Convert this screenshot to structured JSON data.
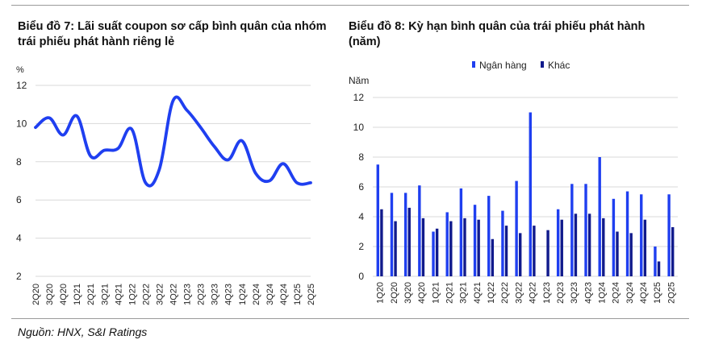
{
  "source": "Nguồn: HNX, S&I Ratings",
  "colors": {
    "bank": "#1f3ff0",
    "other": "#101a8c",
    "line": "#1f3ff0",
    "grid": "#d9d9d9"
  },
  "chart_data": [
    {
      "type": "line",
      "title": "Biểu đồ 7: Lãi suất coupon sơ cấp bình quân của nhóm trái phiếu phát hành riêng lẻ",
      "ylabel": "%",
      "ylim": [
        2,
        12
      ],
      "yticks": [
        2,
        4,
        6,
        8,
        10,
        12
      ],
      "grid": true,
      "x_tick_labels": [
        "2Q20",
        "3Q20",
        "4Q20",
        "1Q21",
        "2Q21",
        "3Q21",
        "4Q21",
        "1Q22",
        "2Q22",
        "3Q22",
        "4Q22",
        "1Q23",
        "2Q23",
        "3Q23",
        "4Q23",
        "1Q24",
        "2Q24",
        "3Q24",
        "4Q24",
        "1Q25",
        "2Q25"
      ],
      "x": [
        "2Q20",
        "3Q20",
        "4Q20",
        "1Q21",
        "2Q21",
        "3Q21",
        "4Q21",
        "1Q22",
        "2Q22",
        "3Q22",
        "4Q22",
        "1Q23",
        "2Q23",
        "3Q23",
        "4Q23",
        "1Q24",
        "2Q24",
        "3Q24",
        "4Q24",
        "1Q25",
        "2Q25"
      ],
      "series": [
        {
          "values": [
            9.8,
            10.3,
            9.4,
            10.4,
            8.3,
            8.6,
            8.7,
            9.7,
            6.9,
            7.6,
            11.2,
            10.7,
            9.8,
            8.8,
            8.1,
            9.1,
            7.4,
            7.0,
            7.9,
            6.9,
            6.9
          ]
        }
      ]
    },
    {
      "type": "bar",
      "title": "Biểu đồ 8: Kỳ hạn bình quân của trái phiếu phát hành (năm)",
      "ylabel": "Năm",
      "ylim": [
        0,
        12
      ],
      "yticks": [
        0,
        2,
        4,
        6,
        8,
        10,
        12
      ],
      "grid": true,
      "legend_position": "top",
      "categories": [
        "1Q20",
        "2Q20",
        "3Q20",
        "4Q20",
        "1Q21",
        "2Q21",
        "3Q21",
        "4Q21",
        "1Q22",
        "2Q22",
        "3Q22",
        "4Q22",
        "1Q23",
        "2Q23",
        "3Q23",
        "4Q23",
        "1Q24",
        "2Q24",
        "3Q24",
        "4Q24",
        "1Q25",
        "2Q25"
      ],
      "x_tick_labels": [
        "1Q20",
        "2Q20",
        "3Q20",
        "4Q20",
        "1Q21",
        "2Q21",
        "3Q21",
        "4Q21",
        "1Q22",
        "2Q22",
        "3Q22",
        "4Q22",
        "1Q23",
        "2Q23",
        "3Q23",
        "4Q23",
        "1Q24",
        "2Q24",
        "3Q24",
        "4Q24",
        "1Q25",
        "2Q25"
      ],
      "series": [
        {
          "name": "Ngân hàng",
          "values": [
            7.5,
            5.6,
            5.6,
            6.1,
            3.0,
            4.3,
            5.9,
            4.8,
            5.4,
            4.4,
            6.4,
            11.0,
            null,
            4.5,
            6.2,
            6.2,
            8.0,
            5.2,
            5.7,
            5.5,
            2.0,
            5.5
          ]
        },
        {
          "name": "Khác",
          "values": [
            4.5,
            3.7,
            4.6,
            3.9,
            3.2,
            3.7,
            3.9,
            3.8,
            2.5,
            3.4,
            2.9,
            3.4,
            3.1,
            3.8,
            4.2,
            4.2,
            3.9,
            3.0,
            2.9,
            3.8,
            1.0,
            3.3
          ]
        }
      ]
    }
  ]
}
